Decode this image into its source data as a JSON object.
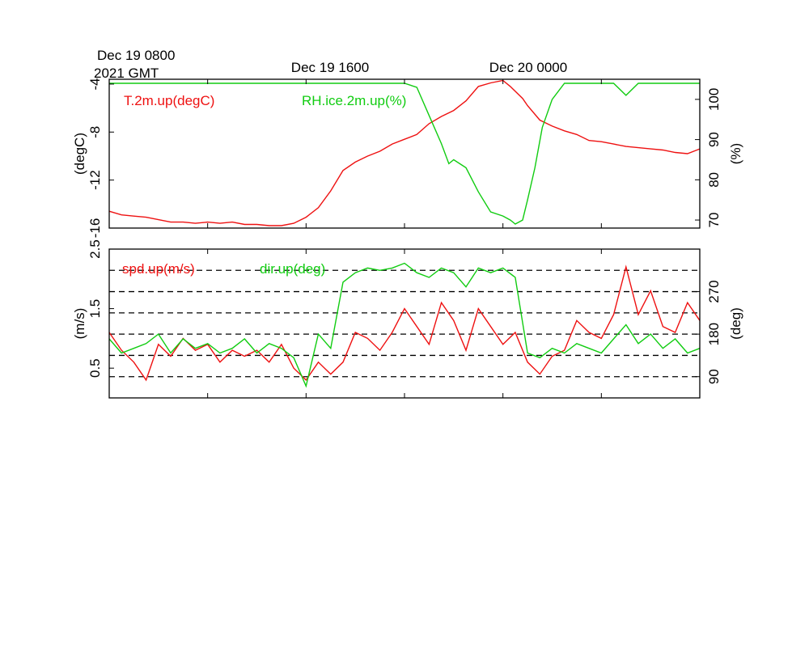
{
  "header": {
    "start_line1": "Dec 19 0800",
    "start_line2": "2021 GMT",
    "tick2": "Dec 19 1600",
    "tick3": "Dec 20 0000"
  },
  "colors": {
    "red": "#ee1111",
    "green": "#11cc11",
    "axis": "#000000"
  },
  "chart_data": [
    {
      "type": "line",
      "x_unit": "hours since Dec 19 0800 2021 GMT",
      "x_range": [
        0,
        24
      ],
      "x_tick_labels": [
        {
          "x": 0,
          "label": "Dec 19 0800 2021 GMT"
        },
        {
          "x": 8,
          "label": "Dec 19 1600"
        },
        {
          "x": 16,
          "label": "Dec 20 0000"
        }
      ],
      "left_axis": {
        "label": "(degC)",
        "range": [
          -16,
          -3.6
        ],
        "ticks": [
          -16,
          -12,
          -8,
          -4
        ]
      },
      "right_axis": {
        "label": "(%)",
        "range": [
          68,
          105
        ],
        "ticks": [
          70,
          80,
          90,
          100
        ]
      },
      "grid": false,
      "series": [
        {
          "name": "T.2m.up(degC)",
          "axis": "left",
          "color": "#ee1111",
          "points": [
            [
              0,
              -14.6
            ],
            [
              0.5,
              -14.9
            ],
            [
              1,
              -15.0
            ],
            [
              1.5,
              -15.1
            ],
            [
              2,
              -15.3
            ],
            [
              2.5,
              -15.5
            ],
            [
              3,
              -15.5
            ],
            [
              3.5,
              -15.6
            ],
            [
              4,
              -15.5
            ],
            [
              4.5,
              -15.6
            ],
            [
              5,
              -15.5
            ],
            [
              5.5,
              -15.7
            ],
            [
              6,
              -15.7
            ],
            [
              6.5,
              -15.8
            ],
            [
              7,
              -15.8
            ],
            [
              7.5,
              -15.6
            ],
            [
              8,
              -15.1
            ],
            [
              8.5,
              -14.3
            ],
            [
              9,
              -12.9
            ],
            [
              9.5,
              -11.2
            ],
            [
              10,
              -10.5
            ],
            [
              10.5,
              -10.0
            ],
            [
              11,
              -9.6
            ],
            [
              11.5,
              -9.0
            ],
            [
              12,
              -8.6
            ],
            [
              12.5,
              -8.2
            ],
            [
              13,
              -7.3
            ],
            [
              13.5,
              -6.7
            ],
            [
              14,
              -6.2
            ],
            [
              14.5,
              -5.4
            ],
            [
              15,
              -4.2
            ],
            [
              15.5,
              -3.9
            ],
            [
              16,
              -3.7
            ],
            [
              16.3,
              -4.2
            ],
            [
              16.8,
              -5.2
            ],
            [
              17,
              -5.8
            ],
            [
              17.5,
              -7.0
            ],
            [
              18,
              -7.5
            ],
            [
              18.5,
              -7.9
            ],
            [
              19,
              -8.2
            ],
            [
              19.5,
              -8.7
            ],
            [
              20,
              -8.8
            ],
            [
              20.5,
              -9.0
            ],
            [
              21,
              -9.2
            ],
            [
              21.5,
              -9.3
            ],
            [
              22,
              -9.4
            ],
            [
              22.5,
              -9.5
            ],
            [
              23,
              -9.7
            ],
            [
              23.5,
              -9.8
            ],
            [
              24,
              -9.4
            ]
          ]
        },
        {
          "name": "RH.ice.2m.up(%)",
          "axis": "right",
          "color": "#11cc11",
          "points": [
            [
              0,
              104
            ],
            [
              1,
              104
            ],
            [
              2,
              104
            ],
            [
              3,
              104
            ],
            [
              4,
              104
            ],
            [
              5,
              104
            ],
            [
              6,
              104
            ],
            [
              7,
              104
            ],
            [
              8,
              104
            ],
            [
              9,
              104
            ],
            [
              10,
              104
            ],
            [
              11,
              104
            ],
            [
              12,
              104
            ],
            [
              12.5,
              103
            ],
            [
              13,
              96
            ],
            [
              13.5,
              89
            ],
            [
              13.8,
              84
            ],
            [
              14,
              85
            ],
            [
              14.5,
              83
            ],
            [
              15,
              77
            ],
            [
              15.5,
              72
            ],
            [
              16,
              71
            ],
            [
              16.3,
              70
            ],
            [
              16.5,
              69
            ],
            [
              16.8,
              70
            ],
            [
              17,
              75
            ],
            [
              17.3,
              83
            ],
            [
              17.6,
              93
            ],
            [
              18,
              100
            ],
            [
              18.5,
              104
            ],
            [
              19,
              104
            ],
            [
              19.5,
              104
            ],
            [
              20,
              104
            ],
            [
              20.5,
              104
            ],
            [
              21,
              101
            ],
            [
              21.5,
              104
            ],
            [
              22,
              104
            ],
            [
              22.5,
              104
            ],
            [
              23,
              104
            ],
            [
              23.5,
              104
            ],
            [
              24,
              104
            ]
          ]
        }
      ]
    },
    {
      "type": "line",
      "x_unit": "hours since Dec 19 0800 2021 GMT",
      "x_range": [
        0,
        24
      ],
      "left_axis": {
        "label": "(m/s)",
        "range": [
          0,
          2.5
        ],
        "ticks": [
          0.5,
          1.5,
          2.5
        ]
      },
      "right_axis": {
        "label": "(deg)",
        "range": [
          45,
          360
        ],
        "ticks": [
          90,
          180,
          270
        ]
      },
      "reference_lines_deg": [
        90,
        135,
        180,
        225,
        270,
        315
      ],
      "grid": false,
      "series": [
        {
          "name": "spd.up(m/s)",
          "axis": "left",
          "color": "#ee1111",
          "points": [
            [
              0,
              1.1
            ],
            [
              0.5,
              0.8
            ],
            [
              1,
              0.6
            ],
            [
              1.5,
              0.3
            ],
            [
              2,
              0.9
            ],
            [
              2.5,
              0.7
            ],
            [
              3,
              1.0
            ],
            [
              3.5,
              0.8
            ],
            [
              4,
              0.9
            ],
            [
              4.5,
              0.6
            ],
            [
              5,
              0.8
            ],
            [
              5.5,
              0.7
            ],
            [
              6,
              0.8
            ],
            [
              6.5,
              0.6
            ],
            [
              7,
              0.9
            ],
            [
              7.5,
              0.5
            ],
            [
              8,
              0.3
            ],
            [
              8.5,
              0.6
            ],
            [
              9,
              0.4
            ],
            [
              9.5,
              0.6
            ],
            [
              10,
              1.1
            ],
            [
              10.5,
              1.0
            ],
            [
              11,
              0.8
            ],
            [
              11.5,
              1.1
            ],
            [
              12,
              1.5
            ],
            [
              12.5,
              1.2
            ],
            [
              13,
              0.9
            ],
            [
              13.5,
              1.6
            ],
            [
              14,
              1.3
            ],
            [
              14.5,
              0.8
            ],
            [
              15,
              1.5
            ],
            [
              15.5,
              1.2
            ],
            [
              16,
              0.9
            ],
            [
              16.5,
              1.1
            ],
            [
              17,
              0.6
            ],
            [
              17.5,
              0.4
            ],
            [
              18,
              0.7
            ],
            [
              18.5,
              0.8
            ],
            [
              19,
              1.3
            ],
            [
              19.5,
              1.1
            ],
            [
              20,
              1.0
            ],
            [
              20.5,
              1.4
            ],
            [
              21,
              2.2
            ],
            [
              21.5,
              1.4
            ],
            [
              22,
              1.8
            ],
            [
              22.5,
              1.2
            ],
            [
              23,
              1.1
            ],
            [
              23.5,
              1.6
            ],
            [
              24,
              1.3
            ]
          ]
        },
        {
          "name": "dir.up(deg)",
          "axis": "right",
          "color": "#11cc11",
          "points": [
            [
              0,
              170
            ],
            [
              0.5,
              140
            ],
            [
              1,
              150
            ],
            [
              1.5,
              160
            ],
            [
              2,
              180
            ],
            [
              2.5,
              140
            ],
            [
              3,
              170
            ],
            [
              3.5,
              150
            ],
            [
              4,
              160
            ],
            [
              4.5,
              140
            ],
            [
              5,
              150
            ],
            [
              5.5,
              170
            ],
            [
              6,
              140
            ],
            [
              6.5,
              160
            ],
            [
              7,
              150
            ],
            [
              7.5,
              130
            ],
            [
              8,
              70
            ],
            [
              8.5,
              180
            ],
            [
              9,
              150
            ],
            [
              9.5,
              290
            ],
            [
              10,
              310
            ],
            [
              10.5,
              320
            ],
            [
              11,
              315
            ],
            [
              11.5,
              320
            ],
            [
              12,
              330
            ],
            [
              12.5,
              310
            ],
            [
              13,
              300
            ],
            [
              13.5,
              320
            ],
            [
              14,
              310
            ],
            [
              14.5,
              280
            ],
            [
              15,
              320
            ],
            [
              15.5,
              310
            ],
            [
              16,
              320
            ],
            [
              16.5,
              300
            ],
            [
              17,
              140
            ],
            [
              17.5,
              130
            ],
            [
              18,
              150
            ],
            [
              18.5,
              140
            ],
            [
              19,
              160
            ],
            [
              19.5,
              150
            ],
            [
              20,
              140
            ],
            [
              20.5,
              170
            ],
            [
              21,
              200
            ],
            [
              21.5,
              160
            ],
            [
              22,
              180
            ],
            [
              22.5,
              150
            ],
            [
              23,
              170
            ],
            [
              23.5,
              140
            ],
            [
              24,
              150
            ]
          ]
        }
      ]
    }
  ]
}
